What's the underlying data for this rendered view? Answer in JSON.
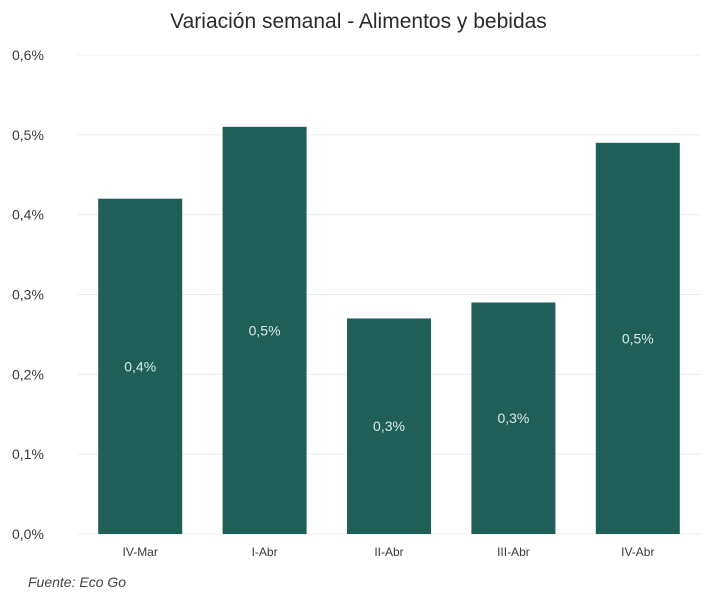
{
  "chart_data": {
    "type": "bar",
    "title": "Variación semanal - Alimentos y bebidas",
    "categories": [
      "IV-Mar",
      "I-Abr",
      "II-Abr",
      "III-Abr",
      "IV-Abr"
    ],
    "values": [
      0.42,
      0.51,
      0.27,
      0.29,
      0.49
    ],
    "data_labels": [
      "0,4%",
      "0,5%",
      "0,3%",
      "0,3%",
      "0,5%"
    ],
    "y_ticks": [
      "0,0%",
      "0,1%",
      "0,2%",
      "0,3%",
      "0,4%",
      "0,5%",
      "0,6%"
    ],
    "ylim": [
      0,
      0.6
    ],
    "grid": true,
    "bar_color": "#1f5f58",
    "source": "Fuente: Eco Go"
  }
}
